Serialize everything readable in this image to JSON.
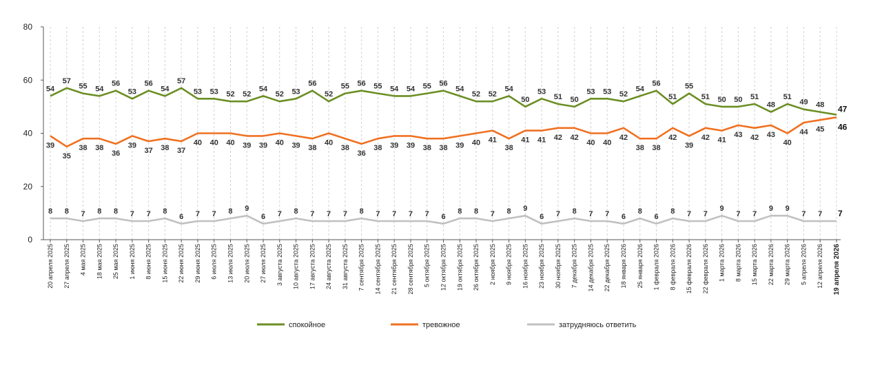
{
  "chart_data": {
    "type": "line",
    "ylim": [
      0,
      80
    ],
    "yticks": [
      0,
      20,
      40,
      60,
      80
    ],
    "grid": "vertical-dashed",
    "legend_position": "bottom",
    "categories": [
      "20 апреля 2025",
      "27 апреля 2025",
      "4 мая 2025",
      "18 мая 2025",
      "25 мая 2025",
      "1 июня 2025",
      "8 июня 2025",
      "15 июня 2025",
      "22 июня 2025",
      "29 июня 2025",
      "6 июля 2025",
      "13 июля 2025",
      "20 июля 2025",
      "27 июля 2025",
      "3 августа 2025",
      "10 августа 2025",
      "17 августа 2025",
      "24 августа 2025",
      "31 августа 2025",
      "7 сентября 2025",
      "14 сентября 2025",
      "21 сентября 2025",
      "28 сентября 2025",
      "5 октября 2025",
      "12 октября 2025",
      "19 октября 2025",
      "26 октября 2025",
      "2 ноября 2025",
      "9 ноября 2025",
      "16 ноября 2025",
      "23 ноября 2025",
      "30 ноября 2025",
      "7 декабря 2025",
      "14 декабря 2025",
      "22 декабря 2025",
      "18 января 2026",
      "25 января 2026",
      "1 февраля 2026",
      "8 февраля 2026",
      "15 февраля 2026",
      "22 февраля 2026",
      "1 марта 2026",
      "8 марта 2026",
      "15 марта 2026",
      "22 марта 2026",
      "29 марта 2026",
      "5 апреля 2026",
      "12 апреля 2026",
      "19 апреля 2026"
    ],
    "series": [
      {
        "name": "спокойное",
        "color": "#6b8e23",
        "values": [
          54,
          57,
          55,
          54,
          56,
          53,
          56,
          54,
          57,
          53,
          53,
          52,
          52,
          54,
          52,
          53,
          56,
          52,
          55,
          56,
          55,
          54,
          54,
          55,
          56,
          54,
          52,
          52,
          54,
          50,
          53,
          51,
          50,
          53,
          53,
          52,
          54,
          56,
          51,
          55,
          51,
          50,
          50,
          51,
          48,
          51,
          49,
          48,
          47
        ]
      },
      {
        "name": "тревожное",
        "color": "#f07020",
        "values": [
          39,
          35,
          38,
          38,
          36,
          39,
          37,
          38,
          37,
          40,
          40,
          40,
          39,
          39,
          40,
          39,
          38,
          40,
          38,
          36,
          38,
          39,
          39,
          38,
          38,
          39,
          40,
          41,
          38,
          41,
          41,
          42,
          42,
          40,
          40,
          42,
          38,
          38,
          42,
          39,
          42,
          41,
          43,
          42,
          43,
          40,
          44,
          45,
          46
        ]
      },
      {
        "name": "затрудняюсь ответить",
        "color": "#c0c0c0",
        "values": [
          8,
          8,
          7,
          8,
          8,
          7,
          7,
          8,
          6,
          7,
          7,
          8,
          9,
          6,
          7,
          8,
          7,
          7,
          7,
          8,
          7,
          7,
          7,
          7,
          6,
          8,
          8,
          7,
          8,
          9,
          6,
          7,
          8,
          7,
          7,
          6,
          8,
          6,
          8,
          7,
          7,
          9,
          7,
          7,
          9,
          9,
          7,
          7,
          7
        ]
      }
    ]
  }
}
